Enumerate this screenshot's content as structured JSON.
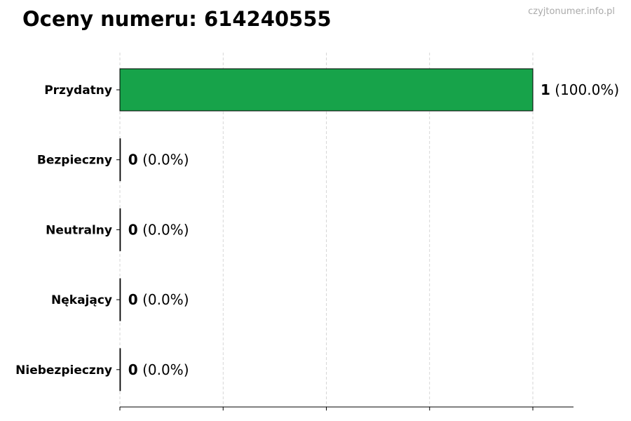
{
  "chart_data": {
    "type": "bar",
    "orientation": "horizontal",
    "title": "Oceny numeru: 614240555",
    "watermark": "czyjtonumer.info.pl",
    "categories": [
      "Przydatny",
      "Bezpieczny",
      "Neutralny",
      "Nękający",
      "Niebezpieczny"
    ],
    "values": [
      1,
      0,
      0,
      0,
      0
    ],
    "labels": [
      {
        "count": "1",
        "percent": "(100.0%)"
      },
      {
        "count": "0",
        "percent": "(0.0%)"
      },
      {
        "count": "0",
        "percent": "(0.0%)"
      },
      {
        "count": "0",
        "percent": "(0.0%)"
      },
      {
        "count": "0",
        "percent": "(0.0%)"
      }
    ],
    "xlim": [
      0,
      1.1
    ],
    "xticks": [
      0,
      0.25,
      0.5,
      0.75,
      1
    ],
    "x_tick_labels_visible": false,
    "grid": "vertical dashed",
    "bar_color": "#17a34a",
    "xlabel": "",
    "ylabel": ""
  }
}
